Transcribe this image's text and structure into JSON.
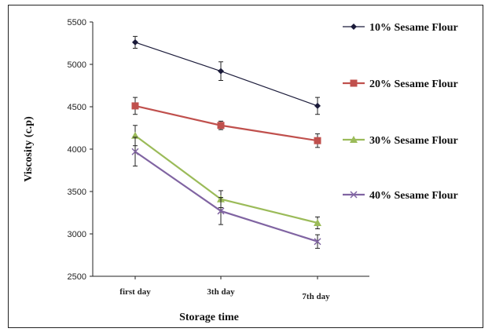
{
  "chart_data": {
    "type": "line",
    "xlabel": "Storage time",
    "ylabel": "Viscosity (c.p)",
    "categories": [
      "first day",
      "3th day",
      "7th day"
    ],
    "ylim": [
      2500,
      5500
    ],
    "yticks": [
      2500,
      3000,
      3500,
      4000,
      4500,
      5000,
      5500
    ],
    "grid": false,
    "legend_position": "right",
    "series": [
      {
        "name": "10% Sesame Flour",
        "values": [
          5260,
          4920,
          4510
        ],
        "errors": [
          70,
          110,
          100
        ],
        "color": "#1b1b3a",
        "marker": "diamond"
      },
      {
        "name": "20% Sesame Flour",
        "values": [
          4510,
          4280,
          4100
        ],
        "errors": [
          100,
          50,
          80
        ],
        "color": "#c0504d",
        "marker": "square"
      },
      {
        "name": "30% Sesame Flour",
        "values": [
          4160,
          3410,
          3130
        ],
        "errors": [
          120,
          100,
          70
        ],
        "color": "#9bbb59",
        "marker": "triangle"
      },
      {
        "name": "40% Sesame Flour",
        "values": [
          3970,
          3270,
          2910
        ],
        "errors": [
          170,
          160,
          80
        ],
        "color": "#8064a2",
        "marker": "x"
      }
    ]
  }
}
